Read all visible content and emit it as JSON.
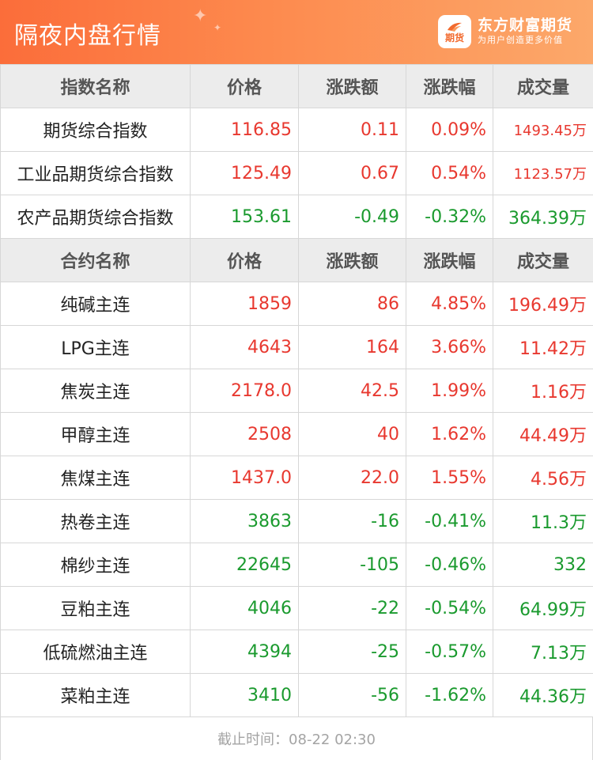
{
  "header": {
    "title": "隔夜内盘行情",
    "brand_name": "东方财富期货",
    "brand_slogan": "为用户创造更多价值",
    "logo_text": "期货"
  },
  "colors": {
    "up": "#e8382f",
    "down": "#1a9a2e",
    "header_start": "#fb6d3a",
    "header_end": "#fca86a"
  },
  "index_table": {
    "headers": [
      "指数名称",
      "价格",
      "涨跌额",
      "涨跌幅",
      "成交量"
    ],
    "rows": [
      {
        "name": "期货综合指数",
        "price": "116.85",
        "change": "0.11",
        "pct": "0.09%",
        "volume": "1493.45万",
        "trend": "up"
      },
      {
        "name": "工业品期货综合指数",
        "price": "125.49",
        "change": "0.67",
        "pct": "0.54%",
        "volume": "1123.57万",
        "trend": "up"
      },
      {
        "name": "农产品期货综合指数",
        "price": "153.61",
        "change": "-0.49",
        "pct": "-0.32%",
        "volume": "364.39万",
        "trend": "down"
      }
    ]
  },
  "contract_table": {
    "headers": [
      "合约名称",
      "价格",
      "涨跌额",
      "涨跌幅",
      "成交量"
    ],
    "rows": [
      {
        "name": "纯碱主连",
        "price": "1859",
        "change": "86",
        "pct": "4.85%",
        "volume": "196.49万",
        "trend": "up"
      },
      {
        "name": "LPG主连",
        "price": "4643",
        "change": "164",
        "pct": "3.66%",
        "volume": "11.42万",
        "trend": "up"
      },
      {
        "name": "焦炭主连",
        "price": "2178.0",
        "change": "42.5",
        "pct": "1.99%",
        "volume": "1.16万",
        "trend": "up"
      },
      {
        "name": "甲醇主连",
        "price": "2508",
        "change": "40",
        "pct": "1.62%",
        "volume": "44.49万",
        "trend": "up"
      },
      {
        "name": "焦煤主连",
        "price": "1437.0",
        "change": "22.0",
        "pct": "1.55%",
        "volume": "4.56万",
        "trend": "up"
      },
      {
        "name": "热卷主连",
        "price": "3863",
        "change": "-16",
        "pct": "-0.41%",
        "volume": "11.3万",
        "trend": "down"
      },
      {
        "name": "棉纱主连",
        "price": "22645",
        "change": "-105",
        "pct": "-0.46%",
        "volume": "332",
        "trend": "down"
      },
      {
        "name": "豆粕主连",
        "price": "4046",
        "change": "-22",
        "pct": "-0.54%",
        "volume": "64.99万",
        "trend": "down"
      },
      {
        "name": "低硫燃油主连",
        "price": "4394",
        "change": "-25",
        "pct": "-0.57%",
        "volume": "7.13万",
        "trend": "down"
      },
      {
        "name": "菜粕主连",
        "price": "3410",
        "change": "-56",
        "pct": "-1.62%",
        "volume": "44.36万",
        "trend": "down"
      }
    ]
  },
  "footer": {
    "label": "截止时间：08-22 02:30"
  }
}
